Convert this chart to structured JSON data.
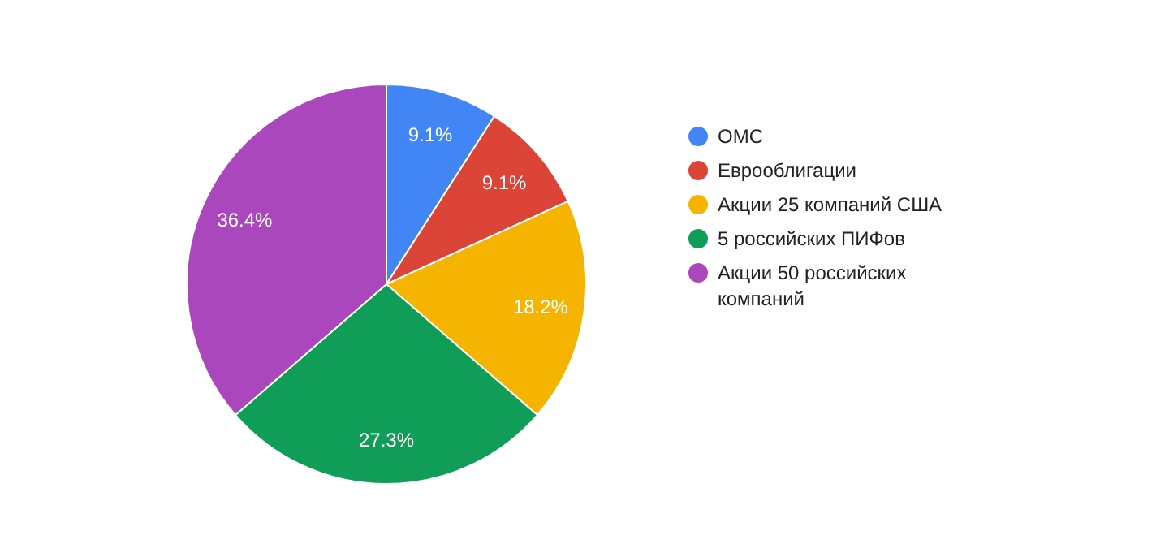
{
  "chart_data": {
    "type": "pie",
    "categories": [
      "ОМС",
      "Еврооблигации",
      "Акции 25 компаний США",
      "5 российских ПИФов",
      "Акции 50 российских компаний"
    ],
    "values": [
      9.1,
      9.1,
      18.2,
      27.3,
      36.4
    ],
    "colors": [
      "#4285f4",
      "#db4437",
      "#f4b400",
      "#0f9d58",
      "#ab47bc"
    ],
    "value_labels": [
      "9.1%",
      "9.1%",
      "18.2%",
      "27.3%",
      "36.4%"
    ],
    "legend": "right"
  }
}
